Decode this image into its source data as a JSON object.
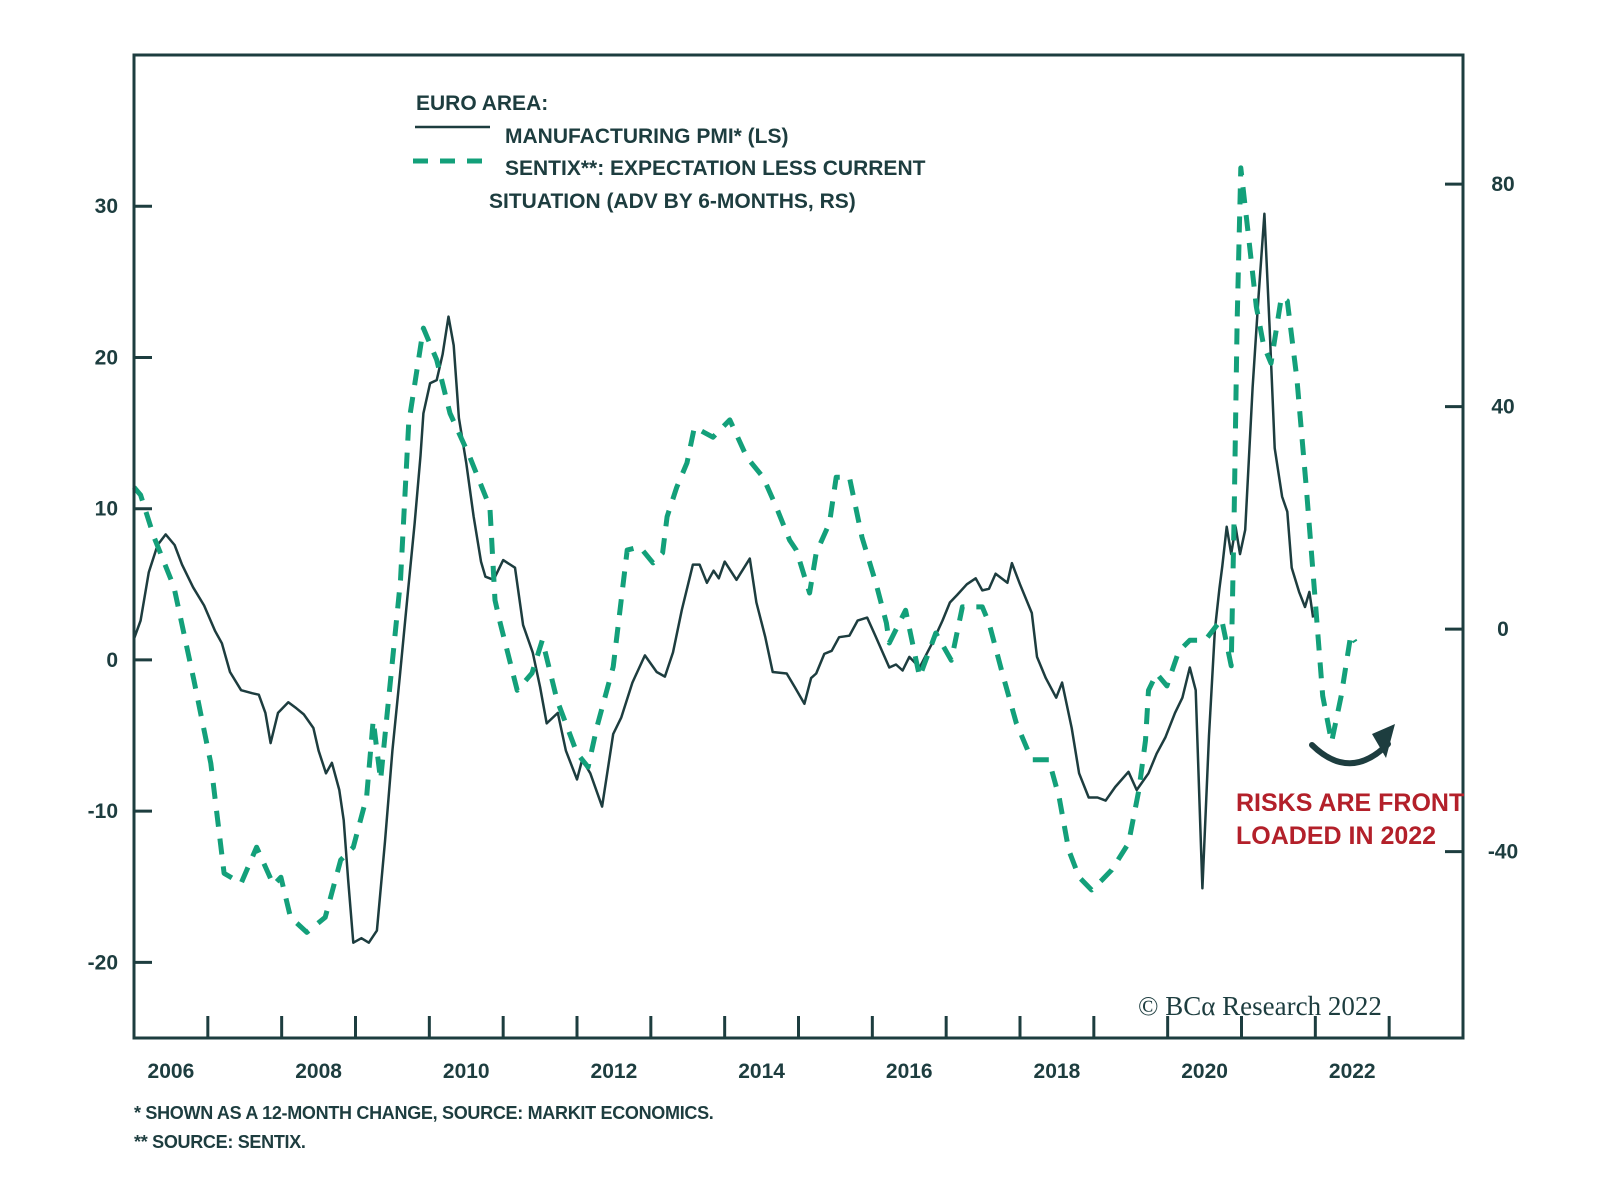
{
  "chart_data": {
    "type": "line",
    "title": "EURO AREA:",
    "xlabel": "",
    "x_ticks": [
      "2006",
      "2008",
      "2010",
      "2012",
      "2014",
      "2016",
      "2018",
      "2020",
      "2022"
    ],
    "xlim": [
      2006,
      2024
    ],
    "left_axis": {
      "label": "LS",
      "ylim": [
        -25,
        40
      ],
      "ticks": [
        30,
        20,
        10,
        0,
        -10,
        -20
      ]
    },
    "right_axis": {
      "label": "RS",
      "ylim": [
        -73.5,
        103.2
      ],
      "ticks": [
        80,
        40,
        0,
        -40
      ]
    },
    "grid": false,
    "legend_position": "top-left",
    "series": [
      {
        "name": "MANUFACTURING PMI* (LS)",
        "axis": "left",
        "style": "solid",
        "color": "#1d3d3f",
        "points": [
          [
            2006.0,
            1.4
          ],
          [
            2006.09,
            2.6
          ],
          [
            2006.2,
            5.8
          ],
          [
            2006.32,
            7.6
          ],
          [
            2006.43,
            8.3
          ],
          [
            2006.55,
            7.6
          ],
          [
            2006.65,
            6.3
          ],
          [
            2006.8,
            4.8
          ],
          [
            2006.95,
            3.6
          ],
          [
            2007.1,
            1.9
          ],
          [
            2007.19,
            1.1
          ],
          [
            2007.3,
            -0.8
          ],
          [
            2007.45,
            -2.0
          ],
          [
            2007.6,
            -2.2
          ],
          [
            2007.69,
            -2.3
          ],
          [
            2007.78,
            -3.5
          ],
          [
            2007.85,
            -5.5
          ],
          [
            2007.95,
            -3.5
          ],
          [
            2008.09,
            -2.8
          ],
          [
            2008.2,
            -3.2
          ],
          [
            2008.3,
            -3.6
          ],
          [
            2008.43,
            -4.5
          ],
          [
            2008.5,
            -6.0
          ],
          [
            2008.6,
            -7.5
          ],
          [
            2008.68,
            -6.8
          ],
          [
            2008.78,
            -8.6
          ],
          [
            2008.84,
            -10.6
          ],
          [
            2008.9,
            -14.5
          ],
          [
            2008.97,
            -18.7
          ],
          [
            2009.08,
            -18.4
          ],
          [
            2009.18,
            -18.7
          ],
          [
            2009.29,
            -17.9
          ],
          [
            2009.4,
            -12
          ],
          [
            2009.5,
            -6
          ],
          [
            2009.6,
            -1.1
          ],
          [
            2009.7,
            4
          ],
          [
            2009.8,
            9
          ],
          [
            2009.88,
            13.5
          ],
          [
            2009.92,
            16.3
          ],
          [
            2010.01,
            18.3
          ],
          [
            2010.1,
            18.5
          ],
          [
            2010.18,
            20.2
          ],
          [
            2010.26,
            22.7
          ],
          [
            2010.33,
            20.8
          ],
          [
            2010.4,
            16
          ],
          [
            2010.5,
            13
          ],
          [
            2010.6,
            9.5
          ],
          [
            2010.7,
            6.5
          ],
          [
            2010.76,
            5.5
          ],
          [
            2010.87,
            5.3
          ],
          [
            2011.0,
            6.6
          ],
          [
            2011.16,
            6.1
          ],
          [
            2011.27,
            2.3
          ],
          [
            2011.4,
            0.5
          ],
          [
            2011.5,
            -1.8
          ],
          [
            2011.59,
            -4.2
          ],
          [
            2011.74,
            -3.5
          ],
          [
            2011.85,
            -6
          ],
          [
            2012.0,
            -7.9
          ],
          [
            2012.07,
            -6.6
          ],
          [
            2012.18,
            -7.5
          ],
          [
            2012.34,
            -9.7
          ],
          [
            2012.49,
            -4.9
          ],
          [
            2012.6,
            -3.8
          ],
          [
            2012.75,
            -1.5
          ],
          [
            2012.92,
            0.3
          ],
          [
            2013.08,
            -0.8
          ],
          [
            2013.19,
            -1.1
          ],
          [
            2013.3,
            0.5
          ],
          [
            2013.42,
            3.3
          ],
          [
            2013.57,
            6.3
          ],
          [
            2013.66,
            6.3
          ],
          [
            2013.76,
            5.1
          ],
          [
            2013.85,
            5.9
          ],
          [
            2013.92,
            5.4
          ],
          [
            2014.0,
            6.5
          ],
          [
            2014.16,
            5.3
          ],
          [
            2014.34,
            6.7
          ],
          [
            2014.43,
            3.8
          ],
          [
            2014.55,
            1.5
          ],
          [
            2014.65,
            -0.8
          ],
          [
            2014.84,
            -0.9
          ],
          [
            2014.95,
            -1.8
          ],
          [
            2015.08,
            -2.9
          ],
          [
            2015.17,
            -1.2
          ],
          [
            2015.24,
            -0.9
          ],
          [
            2015.35,
            0.4
          ],
          [
            2015.45,
            0.6
          ],
          [
            2015.55,
            1.5
          ],
          [
            2015.69,
            1.6
          ],
          [
            2015.8,
            2.6
          ],
          [
            2015.93,
            2.8
          ],
          [
            2016.05,
            1.5
          ],
          [
            2016.23,
            -0.5
          ],
          [
            2016.32,
            -0.3
          ],
          [
            2016.41,
            -0.7
          ],
          [
            2016.5,
            0.2
          ],
          [
            2016.64,
            -0.5
          ],
          [
            2016.81,
            1.1
          ],
          [
            2016.95,
            2.6
          ],
          [
            2017.05,
            3.8
          ],
          [
            2017.15,
            4.3
          ],
          [
            2017.28,
            5.0
          ],
          [
            2017.4,
            5.4
          ],
          [
            2017.49,
            4.6
          ],
          [
            2017.58,
            4.7
          ],
          [
            2017.67,
            5.7
          ],
          [
            2017.83,
            5.1
          ],
          [
            2017.89,
            6.4
          ],
          [
            2018.0,
            5.0
          ],
          [
            2018.16,
            3.1
          ],
          [
            2018.23,
            0.2
          ],
          [
            2018.35,
            -1.2
          ],
          [
            2018.49,
            -2.5
          ],
          [
            2018.57,
            -1.5
          ],
          [
            2018.7,
            -4.5
          ],
          [
            2018.8,
            -7.5
          ],
          [
            2018.93,
            -9.1
          ],
          [
            2019.05,
            -9.1
          ],
          [
            2019.16,
            -9.3
          ],
          [
            2019.29,
            -8.4
          ],
          [
            2019.47,
            -7.4
          ],
          [
            2019.58,
            -8.6
          ],
          [
            2019.74,
            -7.5
          ],
          [
            2019.85,
            -6.2
          ],
          [
            2019.97,
            -5.1
          ],
          [
            2020.1,
            -3.5
          ],
          [
            2020.2,
            -2.5
          ],
          [
            2020.3,
            -0.5
          ],
          [
            2020.38,
            -2.0
          ],
          [
            2020.47,
            -15.1
          ],
          [
            2020.56,
            -5
          ],
          [
            2020.64,
            2
          ],
          [
            2020.7,
            4.7
          ],
          [
            2020.74,
            6.2
          ],
          [
            2020.8,
            8.8
          ],
          [
            2020.86,
            7.0
          ],
          [
            2020.92,
            8.8
          ],
          [
            2020.98,
            7.0
          ],
          [
            2021.05,
            8.6
          ],
          [
            2021.15,
            18
          ],
          [
            2021.23,
            24
          ],
          [
            2021.31,
            29.5
          ],
          [
            2021.38,
            22
          ],
          [
            2021.45,
            14
          ],
          [
            2021.55,
            10.8
          ],
          [
            2021.62,
            9.8
          ],
          [
            2021.68,
            6.1
          ],
          [
            2021.78,
            4.5
          ],
          [
            2021.86,
            3.5
          ],
          [
            2021.92,
            4.5
          ],
          [
            2021.97,
            2.8
          ]
        ]
      },
      {
        "name": "SENTIX**: EXPECTATION LESS CURRENT SITUATION (ADV BY 6-MONTHS, RS)",
        "axis": "right",
        "style": "dashed",
        "color": "#13a07a",
        "points": [
          [
            2006.0,
            25.5
          ],
          [
            2006.09,
            24.1
          ],
          [
            2006.27,
            16.6
          ],
          [
            2006.54,
            7.6
          ],
          [
            2006.81,
            -9.1
          ],
          [
            2007.04,
            -24.1
          ],
          [
            2007.22,
            -43.9
          ],
          [
            2007.45,
            -45.7
          ],
          [
            2007.66,
            -39.2
          ],
          [
            2007.89,
            -46.0
          ],
          [
            2007.99,
            -44.6
          ],
          [
            2008.12,
            -51.8
          ],
          [
            2008.34,
            -54.5
          ],
          [
            2008.59,
            -51.8
          ],
          [
            2008.8,
            -41.5
          ],
          [
            2008.97,
            -39.2
          ],
          [
            2009.15,
            -30.2
          ],
          [
            2009.24,
            -16.4
          ],
          [
            2009.34,
            -27.1
          ],
          [
            2009.42,
            -16.4
          ],
          [
            2009.61,
            8.8
          ],
          [
            2009.72,
            37.0
          ],
          [
            2009.92,
            54.1
          ],
          [
            2010.1,
            48.4
          ],
          [
            2010.28,
            38.8
          ],
          [
            2010.55,
            30.9
          ],
          [
            2010.82,
            21.9
          ],
          [
            2010.89,
            5.2
          ],
          [
            2010.96,
            1.1
          ],
          [
            2011.19,
            -11.0
          ],
          [
            2011.39,
            -7.9
          ],
          [
            2011.53,
            -2.0
          ],
          [
            2011.73,
            -12.8
          ],
          [
            2012.0,
            -22.3
          ],
          [
            2012.15,
            -24.8
          ],
          [
            2012.27,
            -17.6
          ],
          [
            2012.49,
            -6.8
          ],
          [
            2012.68,
            14.2
          ],
          [
            2012.85,
            14.8
          ],
          [
            2013.03,
            11.9
          ],
          [
            2013.16,
            13.7
          ],
          [
            2013.22,
            20.2
          ],
          [
            2013.35,
            25.5
          ],
          [
            2013.49,
            29.9
          ],
          [
            2013.59,
            36.3
          ],
          [
            2013.84,
            34.5
          ],
          [
            2014.07,
            37.6
          ],
          [
            2014.3,
            30.9
          ],
          [
            2014.52,
            27.3
          ],
          [
            2014.7,
            21.9
          ],
          [
            2014.88,
            16.0
          ],
          [
            2014.97,
            14.2
          ],
          [
            2015.15,
            6.5
          ],
          [
            2015.24,
            13.7
          ],
          [
            2015.42,
            19.1
          ],
          [
            2015.51,
            27.3
          ],
          [
            2015.69,
            27.3
          ],
          [
            2015.86,
            16.5
          ],
          [
            2016.05,
            8.2
          ],
          [
            2016.19,
            1.1
          ],
          [
            2016.23,
            -2.5
          ],
          [
            2016.45,
            3.4
          ],
          [
            2016.64,
            -8.6
          ],
          [
            2016.86,
            -0.7
          ],
          [
            2017.07,
            -5.6
          ],
          [
            2017.22,
            4.0
          ],
          [
            2017.49,
            4.0
          ],
          [
            2017.58,
            1.1
          ],
          [
            2017.76,
            -7.9
          ],
          [
            2017.95,
            -16.9
          ],
          [
            2018.16,
            -23.5
          ],
          [
            2018.39,
            -23.5
          ],
          [
            2018.53,
            -30.2
          ],
          [
            2018.66,
            -39.7
          ],
          [
            2018.8,
            -44.6
          ],
          [
            2018.97,
            -46.9
          ],
          [
            2019.11,
            -45.1
          ],
          [
            2019.24,
            -43.3
          ],
          [
            2019.47,
            -38.5
          ],
          [
            2019.61,
            -28.9
          ],
          [
            2019.7,
            -20.0
          ],
          [
            2019.74,
            -11.0
          ],
          [
            2019.85,
            -8
          ],
          [
            2019.99,
            -10.2
          ],
          [
            2020.15,
            -4
          ],
          [
            2020.3,
            -2
          ],
          [
            2020.51,
            -2.0
          ],
          [
            2020.73,
            1.8
          ],
          [
            2020.86,
            -6.6
          ],
          [
            2020.9,
            20
          ],
          [
            2020.94,
            55
          ],
          [
            2020.99,
            82.9
          ],
          [
            2021.1,
            70
          ],
          [
            2021.2,
            58
          ],
          [
            2021.3,
            51
          ],
          [
            2021.4,
            47.8
          ],
          [
            2021.54,
            59.7
          ],
          [
            2021.62,
            59
          ],
          [
            2021.75,
            45
          ],
          [
            2021.88,
            25
          ],
          [
            2022.0,
            5
          ],
          [
            2022.1,
            -12
          ],
          [
            2022.22,
            -20.3
          ],
          [
            2022.35,
            -12
          ],
          [
            2022.48,
            -1
          ],
          [
            2022.54,
            -2.3
          ]
        ]
      }
    ],
    "legend": {
      "heading": "EURO AREA:",
      "entries": [
        {
          "label": "MANUFACTURING PMI* (LS)",
          "style": "solid"
        },
        {
          "label_line1": "SENTIX**: EXPECTATION LESS CURRENT",
          "label_line2": "SITUATION (ADV BY 6-MONTHS, RS)",
          "style": "dashed"
        }
      ]
    },
    "annotations": {
      "risk_line1": "RISKS ARE FRONT",
      "risk_line2": "LOADED IN 2022",
      "risk_color": "#b3202a",
      "arrow": "curved-up-right-arrow"
    },
    "credit": "© BCα Research 2022"
  },
  "footnotes": {
    "note1": "*  SHOWN AS A 12-MONTH CHANGE, SOURCE: MARKIT ECONOMICS.",
    "note2": "** SOURCE: SENTIX."
  },
  "colors": {
    "axis": "#1d3d3f",
    "pmi": "#1d3d3f",
    "sentix": "#13a07a",
    "annotation": "#b3202a"
  }
}
